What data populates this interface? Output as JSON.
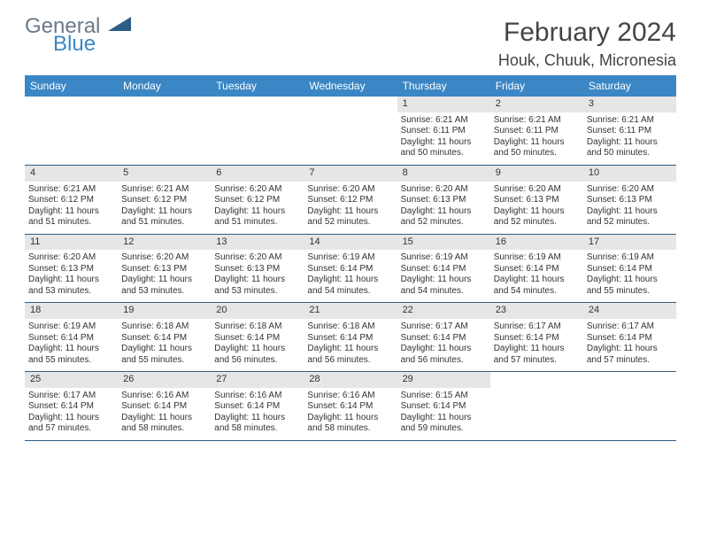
{
  "brand": {
    "general": "General",
    "blue": "Blue",
    "shape_color": "#2f5d85"
  },
  "title": "February 2024",
  "location": "Houk, Chuuk, Micronesia",
  "header_bg": "#3b86c4",
  "daynum_bg": "#e6e6e6",
  "border_color": "#2f5d85",
  "weekdays": [
    "Sunday",
    "Monday",
    "Tuesday",
    "Wednesday",
    "Thursday",
    "Friday",
    "Saturday"
  ],
  "weeks": [
    [
      null,
      null,
      null,
      null,
      {
        "n": "1",
        "sunrise": "6:21 AM",
        "sunset": "6:11 PM",
        "dl": "11 hours and 50 minutes."
      },
      {
        "n": "2",
        "sunrise": "6:21 AM",
        "sunset": "6:11 PM",
        "dl": "11 hours and 50 minutes."
      },
      {
        "n": "3",
        "sunrise": "6:21 AM",
        "sunset": "6:11 PM",
        "dl": "11 hours and 50 minutes."
      }
    ],
    [
      {
        "n": "4",
        "sunrise": "6:21 AM",
        "sunset": "6:12 PM",
        "dl": "11 hours and 51 minutes."
      },
      {
        "n": "5",
        "sunrise": "6:21 AM",
        "sunset": "6:12 PM",
        "dl": "11 hours and 51 minutes."
      },
      {
        "n": "6",
        "sunrise": "6:20 AM",
        "sunset": "6:12 PM",
        "dl": "11 hours and 51 minutes."
      },
      {
        "n": "7",
        "sunrise": "6:20 AM",
        "sunset": "6:12 PM",
        "dl": "11 hours and 52 minutes."
      },
      {
        "n": "8",
        "sunrise": "6:20 AM",
        "sunset": "6:13 PM",
        "dl": "11 hours and 52 minutes."
      },
      {
        "n": "9",
        "sunrise": "6:20 AM",
        "sunset": "6:13 PM",
        "dl": "11 hours and 52 minutes."
      },
      {
        "n": "10",
        "sunrise": "6:20 AM",
        "sunset": "6:13 PM",
        "dl": "11 hours and 52 minutes."
      }
    ],
    [
      {
        "n": "11",
        "sunrise": "6:20 AM",
        "sunset": "6:13 PM",
        "dl": "11 hours and 53 minutes."
      },
      {
        "n": "12",
        "sunrise": "6:20 AM",
        "sunset": "6:13 PM",
        "dl": "11 hours and 53 minutes."
      },
      {
        "n": "13",
        "sunrise": "6:20 AM",
        "sunset": "6:13 PM",
        "dl": "11 hours and 53 minutes."
      },
      {
        "n": "14",
        "sunrise": "6:19 AM",
        "sunset": "6:14 PM",
        "dl": "11 hours and 54 minutes."
      },
      {
        "n": "15",
        "sunrise": "6:19 AM",
        "sunset": "6:14 PM",
        "dl": "11 hours and 54 minutes."
      },
      {
        "n": "16",
        "sunrise": "6:19 AM",
        "sunset": "6:14 PM",
        "dl": "11 hours and 54 minutes."
      },
      {
        "n": "17",
        "sunrise": "6:19 AM",
        "sunset": "6:14 PM",
        "dl": "11 hours and 55 minutes."
      }
    ],
    [
      {
        "n": "18",
        "sunrise": "6:19 AM",
        "sunset": "6:14 PM",
        "dl": "11 hours and 55 minutes."
      },
      {
        "n": "19",
        "sunrise": "6:18 AM",
        "sunset": "6:14 PM",
        "dl": "11 hours and 55 minutes."
      },
      {
        "n": "20",
        "sunrise": "6:18 AM",
        "sunset": "6:14 PM",
        "dl": "11 hours and 56 minutes."
      },
      {
        "n": "21",
        "sunrise": "6:18 AM",
        "sunset": "6:14 PM",
        "dl": "11 hours and 56 minutes."
      },
      {
        "n": "22",
        "sunrise": "6:17 AM",
        "sunset": "6:14 PM",
        "dl": "11 hours and 56 minutes."
      },
      {
        "n": "23",
        "sunrise": "6:17 AM",
        "sunset": "6:14 PM",
        "dl": "11 hours and 57 minutes."
      },
      {
        "n": "24",
        "sunrise": "6:17 AM",
        "sunset": "6:14 PM",
        "dl": "11 hours and 57 minutes."
      }
    ],
    [
      {
        "n": "25",
        "sunrise": "6:17 AM",
        "sunset": "6:14 PM",
        "dl": "11 hours and 57 minutes."
      },
      {
        "n": "26",
        "sunrise": "6:16 AM",
        "sunset": "6:14 PM",
        "dl": "11 hours and 58 minutes."
      },
      {
        "n": "27",
        "sunrise": "6:16 AM",
        "sunset": "6:14 PM",
        "dl": "11 hours and 58 minutes."
      },
      {
        "n": "28",
        "sunrise": "6:16 AM",
        "sunset": "6:14 PM",
        "dl": "11 hours and 58 minutes."
      },
      {
        "n": "29",
        "sunrise": "6:15 AM",
        "sunset": "6:14 PM",
        "dl": "11 hours and 59 minutes."
      },
      null,
      null
    ]
  ],
  "labels": {
    "sunrise": "Sunrise: ",
    "sunset": "Sunset: ",
    "daylight": "Daylight: "
  }
}
